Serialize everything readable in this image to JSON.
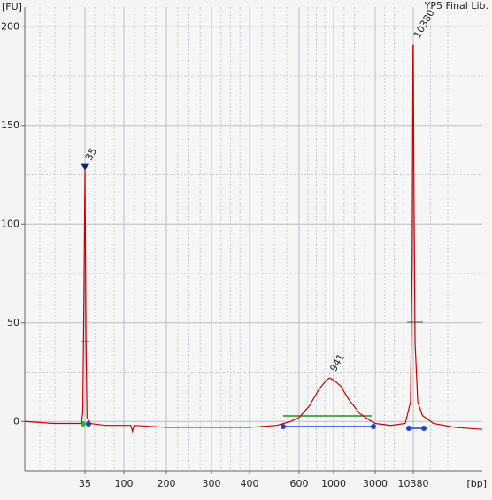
{
  "chart_data": {
    "type": "line",
    "title": "YP5 Final Lib.",
    "y_label": "[FU]",
    "x_label": "[bp]",
    "xlim": [
      7,
      98000
    ],
    "xticks": [
      35,
      100,
      200,
      300,
      400,
      600,
      1000,
      3000,
      10380
    ],
    "ylim": [
      -25,
      210
    ],
    "yticks": [
      0,
      50,
      100,
      150,
      200
    ],
    "grid": true,
    "series": [
      {
        "color": "#cc0000",
        "x": [
          7,
          15,
          25,
          32,
          33,
          34,
          35,
          36,
          37,
          40,
          60,
          80,
          90,
          100,
          112,
          115,
          118,
          200,
          300,
          400,
          500,
          560,
          600,
          700,
          800,
          900,
          941,
          1000,
          1200,
          1500,
          2000,
          2500,
          3000,
          5000,
          8000,
          9500,
          10000,
          10300,
          10380,
          10600,
          11000,
          12000,
          14000,
          20000,
          40000,
          98000
        ],
        "values": [
          0,
          -1,
          -1,
          -1,
          5,
          60,
          129,
          40,
          2,
          -1,
          -2,
          -2,
          -2,
          -2,
          -2,
          -5,
          -2,
          -3,
          -3,
          -3,
          -2,
          0,
          2,
          8,
          16,
          21,
          22,
          21,
          18,
          11,
          4,
          1,
          -1,
          -2,
          -1,
          10,
          80,
          190,
          191,
          120,
          40,
          10,
          3,
          -1,
          -3,
          -4
        ]
      }
    ],
    "annotations": [
      {
        "text": "35",
        "x": 35,
        "y": 129,
        "color": "#008000"
      },
      {
        "text": "941",
        "x": 941,
        "y": 22,
        "color": "#000000"
      },
      {
        "text": "10380",
        "x": 10380,
        "y": 191,
        "color": "#8030c0"
      }
    ]
  }
}
